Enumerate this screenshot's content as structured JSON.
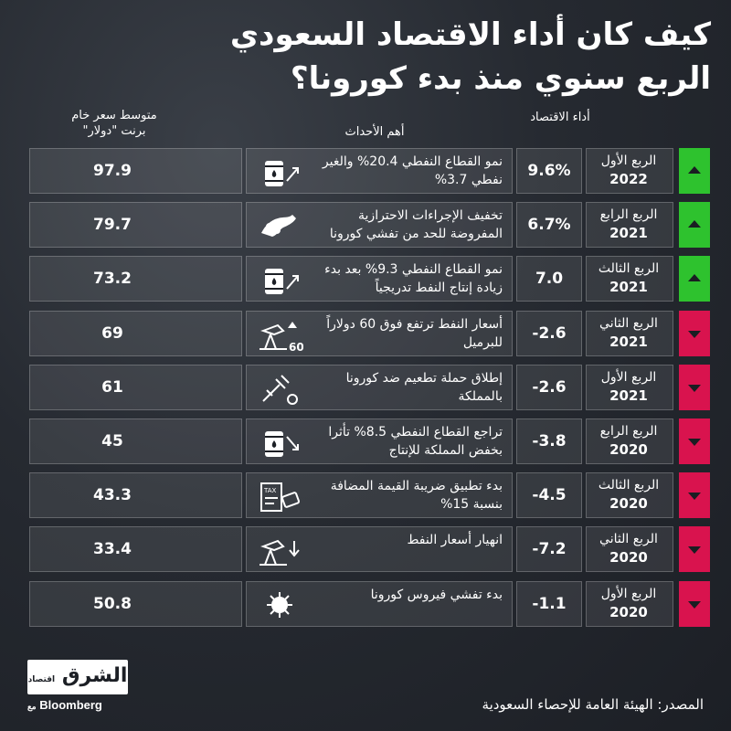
{
  "title": {
    "line1": "كيف كان أداء الاقتصاد السعودي",
    "line2": "الربع سنوي منذ بدء كورونا؟"
  },
  "headers": {
    "price": "متوسط سعر خام برنت \"دولار\"",
    "events": "أهم الأحداث",
    "performance": "أداء الاقتصاد"
  },
  "chart_data": {
    "type": "table",
    "columns": [
      "الربع",
      "أداء الاقتصاد",
      "أهم الأحداث",
      "متوسط سعر خام برنت \"دولار\""
    ],
    "rows": [
      {
        "quarter": "الربع الأول",
        "year": "2022",
        "performance": "9.6%",
        "event": "نمو القطاع النفطي 20.4% والغير نفطي 3.7%",
        "brent": "97.9",
        "direction": "up"
      },
      {
        "quarter": "الربع الرابع",
        "year": "2021",
        "performance": "6.7%",
        "event": "تخفيف الإجراءات الاحترازية المفروضة للحد من تفشي كورونا",
        "brent": "79.7",
        "direction": "up"
      },
      {
        "quarter": "الربع الثالث",
        "year": "2021",
        "performance": "7.0",
        "event": "نمو القطاع النفطي 9.3% بعد بدء زيادة إنتاج النفط تدريجياً",
        "brent": "73.2",
        "direction": "up"
      },
      {
        "quarter": "الربع الثاني",
        "year": "2021",
        "performance": "-2.6",
        "event": "أسعار النفط ترتفع فوق 60 دولاراً للبرميل",
        "brent": "69",
        "direction": "down"
      },
      {
        "quarter": "الربع الأول",
        "year": "2021",
        "performance": "-2.6",
        "event": "إطلاق حملة تطعيم ضد كورونا بالمملكة",
        "brent": "61",
        "direction": "down"
      },
      {
        "quarter": "الربع الرابع",
        "year": "2020",
        "performance": "-3.8",
        "event": "تراجع القطاع النفطي 8.5% تأثرا بخفض المملكة للإنتاج",
        "brent": "45",
        "direction": "down"
      },
      {
        "quarter": "الربع الثالث",
        "year": "2020",
        "performance": "-4.5",
        "event": "بدء تطبيق ضريبة القيمة المضافة بنسبة 15%",
        "brent": "43.3",
        "direction": "down"
      },
      {
        "quarter": "الربع الثاني",
        "year": "2020",
        "performance": "-7.2",
        "event": "انهيار أسعار النفط",
        "brent": "33.4",
        "direction": "down"
      },
      {
        "quarter": "الربع الأول",
        "year": "2020",
        "performance": "-1.1",
        "event": "بدء تفشي فيروس كورونا",
        "brent": "50.8",
        "direction": "down"
      }
    ]
  },
  "icons": [
    "oil-barrel-up-icon",
    "hand-mask-icon",
    "oil-barrel-up-icon",
    "oil-pump-60-icon",
    "vaccine-syringe-icon",
    "oil-barrel-down-icon",
    "tax-document-icon",
    "oil-pump-down-icon",
    "virus-icon"
  ],
  "icon_labels": {
    "pump_60": "60",
    "tax": "TAX"
  },
  "colors": {
    "up": "#2ec22e",
    "down": "#d9134e"
  },
  "footer": {
    "source": "المصدر: الهيئة العامة للإحصاء السعودية",
    "logo_text": "الشرق",
    "logo_sub": "اقتصاد",
    "logo_with": "مع",
    "logo_partner": "Bloomberg"
  }
}
